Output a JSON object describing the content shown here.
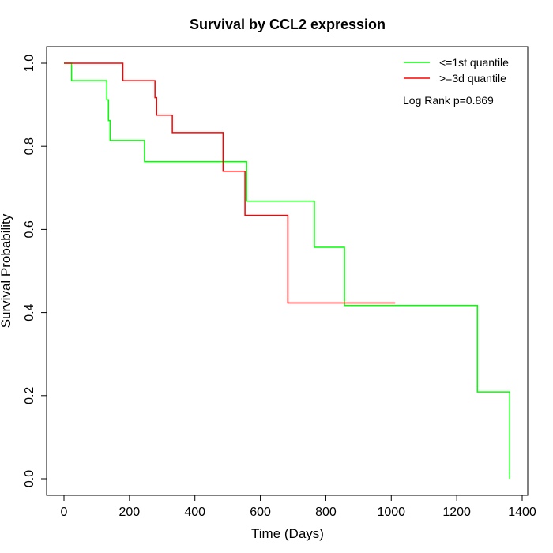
{
  "chart_data": {
    "type": "line",
    "title": "Survival by CCL2 expression",
    "xlabel": "Time (Days)",
    "ylabel": "Survival Probability",
    "xlim": [
      0,
      1400
    ],
    "ylim": [
      0,
      1.0
    ],
    "x_ticks": [
      "0",
      "200",
      "400",
      "600",
      "800",
      "1000",
      "1200",
      "1400"
    ],
    "y_ticks": [
      "0.0",
      "0.2",
      "0.4",
      "0.6",
      "0.8",
      "1.0"
    ],
    "x_tick_values": [
      0,
      200,
      400,
      600,
      800,
      1000,
      1200,
      1400
    ],
    "y_tick_values": [
      0,
      0.2,
      0.4,
      0.6,
      0.8,
      1.0
    ],
    "legend_position": "top-right",
    "annotation": "Log Rank p=0.869",
    "series": [
      {
        "name": "<=1st quantile",
        "color": "#00ff00",
        "steps": [
          [
            0,
            1.0
          ],
          [
            23,
            0.958
          ],
          [
            131,
            0.912
          ],
          [
            136,
            0.862
          ],
          [
            141,
            0.814
          ],
          [
            246,
            0.763
          ],
          [
            558,
            0.668
          ],
          [
            765,
            0.557
          ],
          [
            857,
            0.417
          ],
          [
            1263,
            0.209
          ],
          [
            1362,
            0.0
          ]
        ],
        "end_x": 1362
      },
      {
        "name": ">=3d quantile",
        "color": "#ff0000",
        "steps": [
          [
            0,
            1.0
          ],
          [
            180,
            0.958
          ],
          [
            278,
            0.917
          ],
          [
            283,
            0.875
          ],
          [
            331,
            0.833
          ],
          [
            486,
            0.74
          ],
          [
            553,
            0.634
          ],
          [
            684,
            0.423
          ]
        ],
        "end_x": 1012
      }
    ]
  }
}
